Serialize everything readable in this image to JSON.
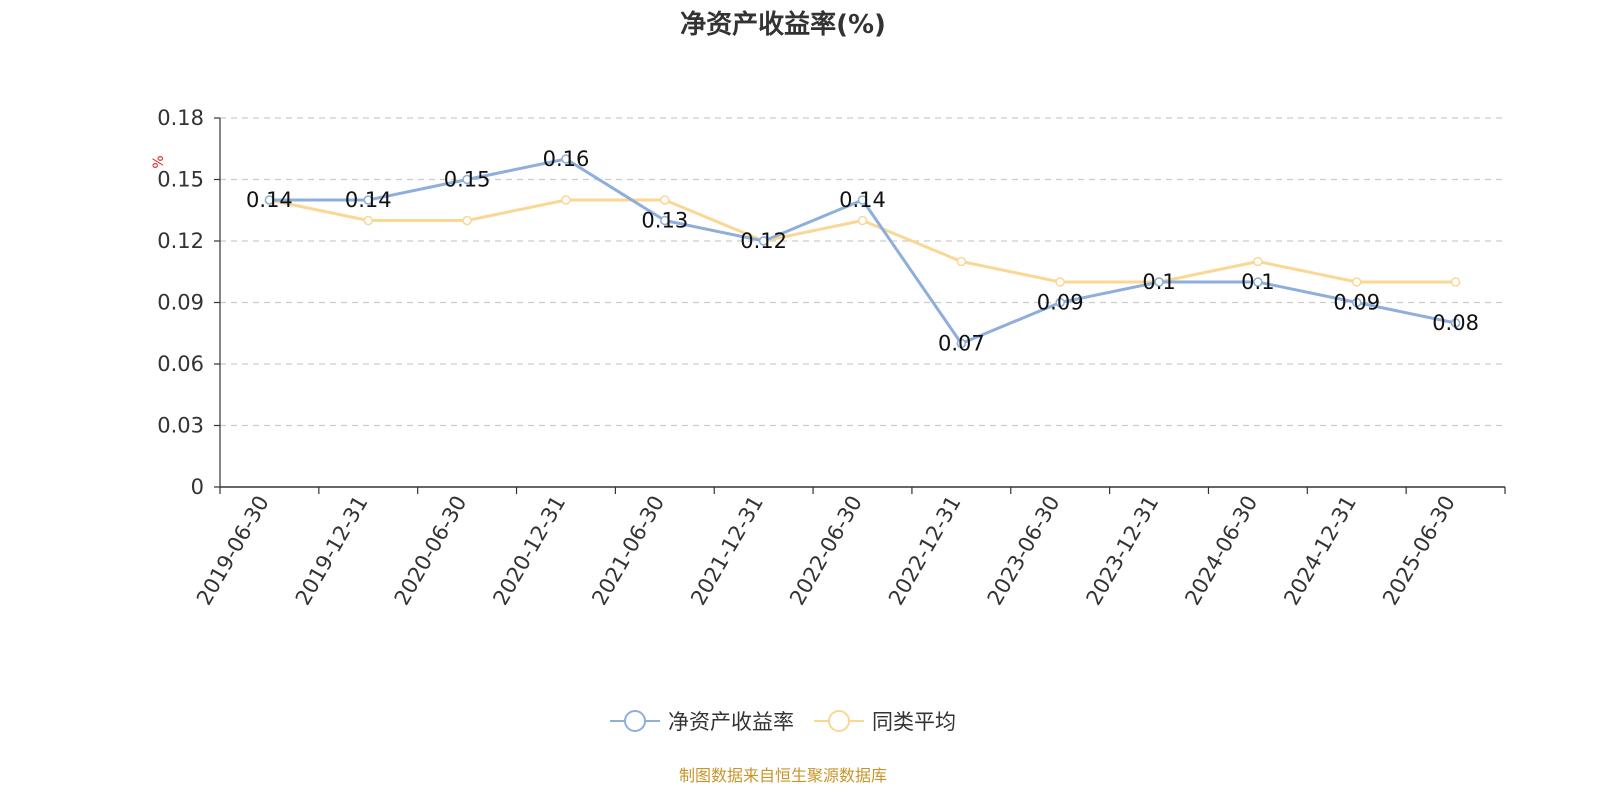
{
  "chart_data": {
    "type": "line",
    "title": "净资产收益率(%)",
    "ylabel": "%",
    "ylim": [
      0,
      0.18
    ],
    "yticks": [
      "0",
      "0.03",
      "0.06",
      "0.09",
      "0.12",
      "0.15",
      "0.18"
    ],
    "grid": true,
    "legend_position": "bottom",
    "categories": [
      "2019-06-30",
      "2019-12-31",
      "2020-06-30",
      "2020-12-31",
      "2021-06-30",
      "2021-12-31",
      "2022-06-30",
      "2022-12-31",
      "2023-06-30",
      "2023-12-31",
      "2024-06-30",
      "2024-12-31",
      "2025-06-30"
    ],
    "series": [
      {
        "name": "净资产收益率",
        "color": "#8eaedb",
        "values": [
          0.14,
          0.14,
          0.15,
          0.16,
          0.13,
          0.12,
          0.14,
          0.07,
          0.09,
          0.1,
          0.1,
          0.09,
          0.08
        ],
        "labels": [
          "0.14",
          "0.14",
          "0.15",
          "0.16",
          "0.13",
          "0.12",
          "0.14",
          "0.07",
          "0.09",
          "0.1",
          "0.1",
          "0.09",
          "0.08"
        ]
      },
      {
        "name": "同类平均",
        "color": "#fbd796",
        "values": [
          0.14,
          0.13,
          0.13,
          0.14,
          0.14,
          0.12,
          0.13,
          0.11,
          0.1,
          0.1,
          0.11,
          0.1,
          0.1
        ]
      }
    ]
  },
  "footer": {
    "source": "制图数据来自恒生聚源数据库",
    "color": "#c8952a"
  },
  "colors": {
    "axis": "#333333",
    "grid": "#cccccc",
    "unit": "#e02020"
  }
}
